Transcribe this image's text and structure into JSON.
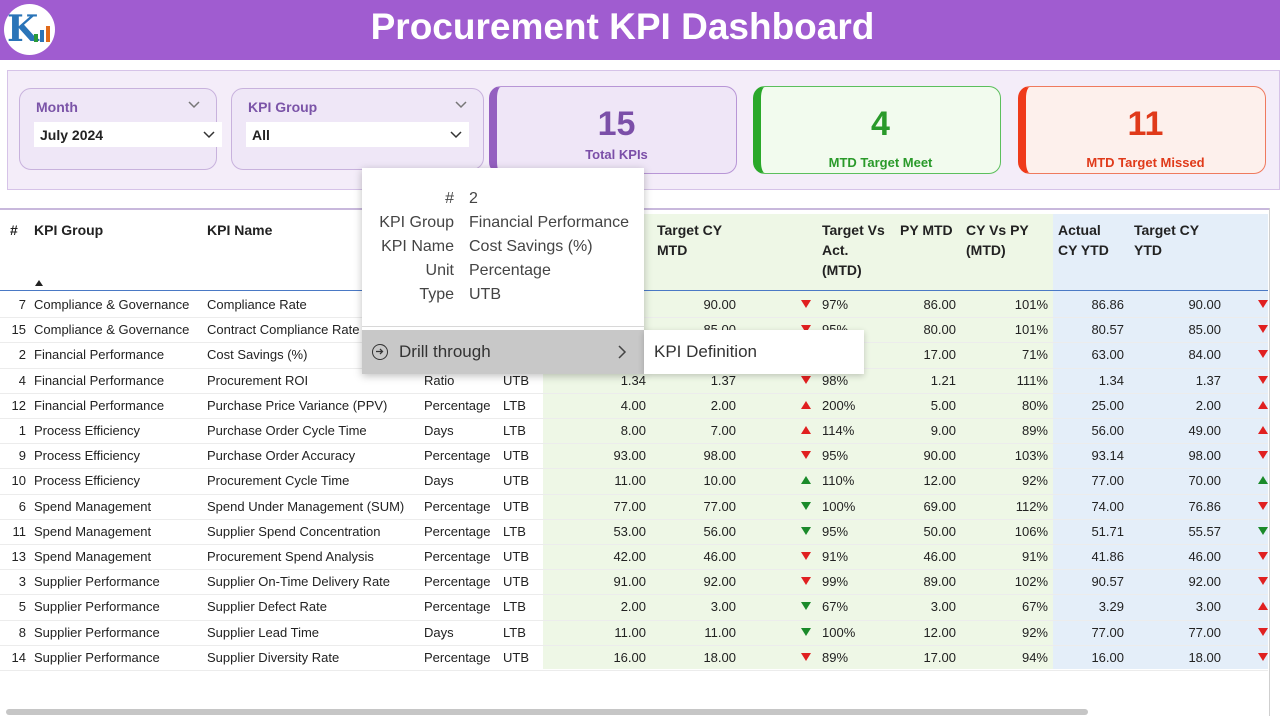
{
  "header": {
    "title": "Procurement KPI Dashboard"
  },
  "slicers": {
    "month": {
      "label": "Month",
      "value": "July 2024"
    },
    "kpi_group": {
      "label": "KPI Group",
      "value": "All"
    }
  },
  "cards": {
    "total": {
      "value": "15",
      "label": "Total KPIs",
      "color": "#7b4fa8"
    },
    "meet": {
      "value": "4",
      "label": "MTD Target Meet",
      "color": "#2a9a2a"
    },
    "missed": {
      "value": "11",
      "label": "MTD Target Missed",
      "color": "#e03a1a"
    }
  },
  "table": {
    "headers": {
      "num": "#",
      "group": "KPI Group",
      "name": "KPI Name",
      "target_mtd": [
        "Target CY",
        "MTD"
      ],
      "tva": [
        "Target Vs",
        "Act.",
        "(MTD)"
      ],
      "py_mtd": "PY MTD",
      "cvp": [
        "CY Vs PY",
        "(MTD)"
      ],
      "actual_ytd": [
        "Actual",
        "CY YTD"
      ],
      "target_ytd": [
        "Target CY",
        "YTD"
      ]
    },
    "rows": [
      {
        "num": "7",
        "group": "Compliance & Governance",
        "name": "Compliance Rate",
        "unit": "",
        "type": "",
        "actual_mtd": "",
        "target_mtd": "90.00",
        "icon_mtd": "down-red",
        "tva": "97%",
        "py": "86.00",
        "cvp": "101%",
        "actual_ytd": "86.86",
        "target_ytd": "90.00",
        "icon_ytd": "down-red"
      },
      {
        "num": "15",
        "group": "Compliance & Governance",
        "name": "Contract Compliance Rate",
        "unit": "",
        "type": "",
        "actual_mtd": "",
        "target_mtd": "85.00",
        "icon_mtd": "down-red",
        "tva": "95%",
        "py": "80.00",
        "cvp": "101%",
        "actual_ytd": "80.57",
        "target_ytd": "85.00",
        "icon_ytd": "down-red"
      },
      {
        "num": "2",
        "group": "Financial Performance",
        "name": "Cost Savings (%)",
        "unit": "",
        "type": "",
        "actual_mtd": "",
        "target_mtd": "",
        "icon_mtd": "",
        "tva": "",
        "py": "17.00",
        "cvp": "71%",
        "actual_ytd": "63.00",
        "target_ytd": "84.00",
        "icon_ytd": "down-red"
      },
      {
        "num": "4",
        "group": "Financial Performance",
        "name": "Procurement ROI",
        "unit": "Ratio",
        "type": "UTB",
        "actual_mtd": "1.34",
        "target_mtd": "1.37",
        "icon_mtd": "down-red",
        "tva": "98%",
        "py": "1.21",
        "cvp": "111%",
        "actual_ytd": "1.34",
        "target_ytd": "1.37",
        "icon_ytd": "down-red"
      },
      {
        "num": "12",
        "group": "Financial Performance",
        "name": "Purchase Price Variance (PPV)",
        "unit": "Percentage",
        "type": "LTB",
        "actual_mtd": "4.00",
        "target_mtd": "2.00",
        "icon_mtd": "up-red",
        "tva": "200%",
        "py": "5.00",
        "cvp": "80%",
        "actual_ytd": "25.00",
        "target_ytd": "2.00",
        "icon_ytd": "up-red"
      },
      {
        "num": "1",
        "group": "Process Efficiency",
        "name": "Purchase Order Cycle Time",
        "unit": "Days",
        "type": "LTB",
        "actual_mtd": "8.00",
        "target_mtd": "7.00",
        "icon_mtd": "up-red",
        "tva": "114%",
        "py": "9.00",
        "cvp": "89%",
        "actual_ytd": "56.00",
        "target_ytd": "49.00",
        "icon_ytd": "up-red"
      },
      {
        "num": "9",
        "group": "Process Efficiency",
        "name": "Purchase Order Accuracy",
        "unit": "Percentage",
        "type": "UTB",
        "actual_mtd": "93.00",
        "target_mtd": "98.00",
        "icon_mtd": "down-red",
        "tva": "95%",
        "py": "90.00",
        "cvp": "103%",
        "actual_ytd": "93.14",
        "target_ytd": "98.00",
        "icon_ytd": "down-red"
      },
      {
        "num": "10",
        "group": "Process Efficiency",
        "name": "Procurement Cycle Time",
        "unit": "Days",
        "type": "UTB",
        "actual_mtd": "11.00",
        "target_mtd": "10.00",
        "icon_mtd": "up-green",
        "tva": "110%",
        "py": "12.00",
        "cvp": "92%",
        "actual_ytd": "77.00",
        "target_ytd": "70.00",
        "icon_ytd": "up-green"
      },
      {
        "num": "6",
        "group": "Spend Management",
        "name": "Spend Under Management (SUM)",
        "unit": "Percentage",
        "type": "UTB",
        "actual_mtd": "77.00",
        "target_mtd": "77.00",
        "icon_mtd": "down-green",
        "tva": "100%",
        "py": "69.00",
        "cvp": "112%",
        "actual_ytd": "74.00",
        "target_ytd": "76.86",
        "icon_ytd": "down-red"
      },
      {
        "num": "11",
        "group": "Spend Management",
        "name": "Supplier Spend Concentration",
        "unit": "Percentage",
        "type": "LTB",
        "actual_mtd": "53.00",
        "target_mtd": "56.00",
        "icon_mtd": "down-green",
        "tva": "95%",
        "py": "50.00",
        "cvp": "106%",
        "actual_ytd": "51.71",
        "target_ytd": "55.57",
        "icon_ytd": "down-green"
      },
      {
        "num": "13",
        "group": "Spend Management",
        "name": "Procurement Spend Analysis",
        "unit": "Percentage",
        "type": "UTB",
        "actual_mtd": "42.00",
        "target_mtd": "46.00",
        "icon_mtd": "down-red",
        "tva": "91%",
        "py": "46.00",
        "cvp": "91%",
        "actual_ytd": "41.86",
        "target_ytd": "46.00",
        "icon_ytd": "down-red"
      },
      {
        "num": "3",
        "group": "Supplier Performance",
        "name": "Supplier On-Time Delivery Rate",
        "unit": "Percentage",
        "type": "UTB",
        "actual_mtd": "91.00",
        "target_mtd": "92.00",
        "icon_mtd": "down-red",
        "tva": "99%",
        "py": "89.00",
        "cvp": "102%",
        "actual_ytd": "90.57",
        "target_ytd": "92.00",
        "icon_ytd": "down-red"
      },
      {
        "num": "5",
        "group": "Supplier Performance",
        "name": "Supplier Defect Rate",
        "unit": "Percentage",
        "type": "LTB",
        "actual_mtd": "2.00",
        "target_mtd": "3.00",
        "icon_mtd": "down-green",
        "tva": "67%",
        "py": "3.00",
        "cvp": "67%",
        "actual_ytd": "3.29",
        "target_ytd": "3.00",
        "icon_ytd": "up-red"
      },
      {
        "num": "8",
        "group": "Supplier Performance",
        "name": "Supplier Lead Time",
        "unit": "Days",
        "type": "LTB",
        "actual_mtd": "11.00",
        "target_mtd": "11.00",
        "icon_mtd": "down-green",
        "tva": "100%",
        "py": "12.00",
        "cvp": "92%",
        "actual_ytd": "77.00",
        "target_ytd": "77.00",
        "icon_ytd": "down-red"
      },
      {
        "num": "14",
        "group": "Supplier Performance",
        "name": "Supplier Diversity Rate",
        "unit": "Percentage",
        "type": "UTB",
        "actual_mtd": "16.00",
        "target_mtd": "18.00",
        "icon_mtd": "down-red",
        "tva": "89%",
        "py": "17.00",
        "cvp": "94%",
        "actual_ytd": "16.00",
        "target_ytd": "18.00",
        "icon_ytd": "down-red"
      }
    ]
  },
  "tooltip": {
    "items": [
      {
        "key": "#",
        "value": "2"
      },
      {
        "key": "KPI Group",
        "value": "Financial Performance"
      },
      {
        "key": "KPI Name",
        "value": "Cost Savings (%)"
      },
      {
        "key": "Unit",
        "value": "Percentage"
      },
      {
        "key": "Type",
        "value": "UTB"
      }
    ],
    "drill_label": "Drill through",
    "submenu_item": "KPI Definition"
  }
}
